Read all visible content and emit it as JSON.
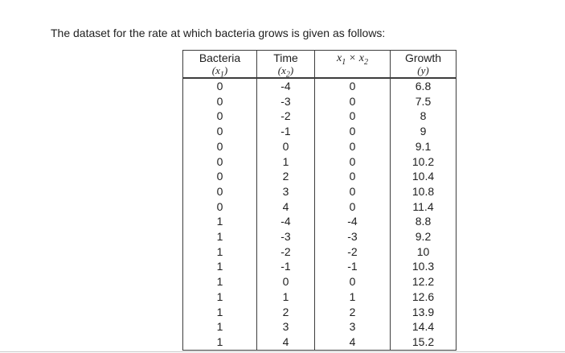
{
  "page": {
    "title_text": "The dataset for the rate at which bacteria grows is given as follows:",
    "background_color": "#ffffff",
    "text_color": "#1e1e1e",
    "table_border_color": "#3d3d3d",
    "bottom_divider_color": "#c9c9c9"
  },
  "table": {
    "header": {
      "col1": {
        "label": "Bacteria",
        "sub": {
          "open": "(",
          "var": "x",
          "idx": "1",
          "close": ")"
        }
      },
      "col2": {
        "label": "Time",
        "sub": {
          "open": "(",
          "var": "x",
          "idx": "2",
          "close": ")"
        }
      },
      "col3": {
        "expr": {
          "var1": "x",
          "idx1": "1",
          "op": " × ",
          "var2": "x",
          "idx2": "2"
        }
      },
      "col4": {
        "label": "Growth",
        "sub": {
          "open": "(",
          "var": "y",
          "idx": "",
          "close": ")"
        }
      }
    },
    "rows": [
      [
        "0",
        "-4",
        "0",
        "6.8"
      ],
      [
        "0",
        "-3",
        "0",
        "7.5"
      ],
      [
        "0",
        "-2",
        "0",
        "8"
      ],
      [
        "0",
        "-1",
        "0",
        "9"
      ],
      [
        "0",
        "0",
        "0",
        "9.1"
      ],
      [
        "0",
        "1",
        "0",
        "10.2"
      ],
      [
        "0",
        "2",
        "0",
        "10.4"
      ],
      [
        "0",
        "3",
        "0",
        "10.8"
      ],
      [
        "0",
        "4",
        "0",
        "11.4"
      ],
      [
        "1",
        "-4",
        "-4",
        "8.8"
      ],
      [
        "1",
        "-3",
        "-3",
        "9.2"
      ],
      [
        "1",
        "-2",
        "-2",
        "10"
      ],
      [
        "1",
        "-1",
        "-1",
        "10.3"
      ],
      [
        "1",
        "0",
        "0",
        "12.2"
      ],
      [
        "1",
        "1",
        "1",
        "12.6"
      ],
      [
        "1",
        "2",
        "2",
        "13.9"
      ],
      [
        "1",
        "3",
        "3",
        "14.4"
      ],
      [
        "1",
        "4",
        "4",
        "15.2"
      ]
    ]
  }
}
